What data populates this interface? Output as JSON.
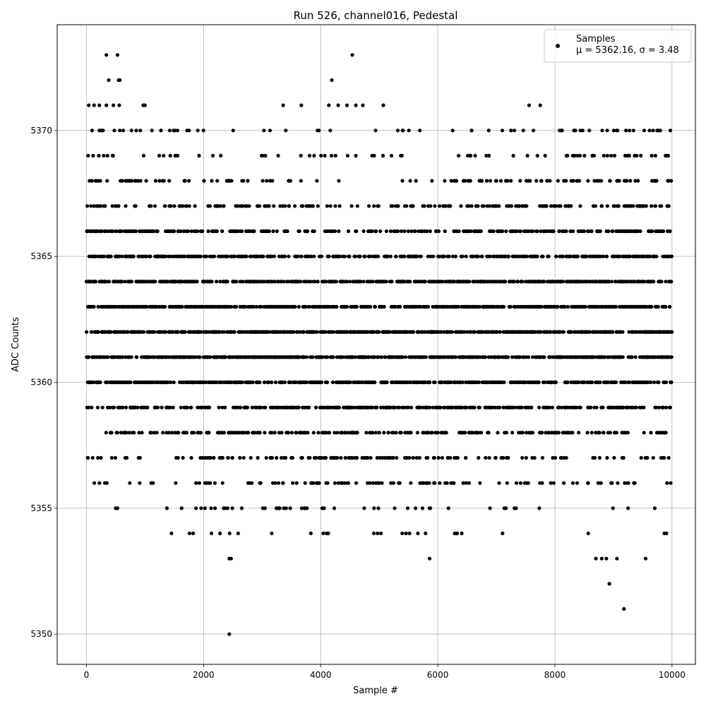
{
  "chart_data": {
    "type": "scatter",
    "title": "Run 526, channel016, Pedestal",
    "xlabel": "Sample #",
    "ylabel": "ADC Counts",
    "xlim": [
      -500,
      10400
    ],
    "ylim": [
      5348.8,
      5374.2
    ],
    "grid": true,
    "x_ticks": [
      0,
      2000,
      4000,
      6000,
      8000,
      10000
    ],
    "y_ticks": [
      5350,
      5355,
      5360,
      5365,
      5370
    ],
    "legend": {
      "placement": "top-right",
      "series_label": "Samples",
      "stats_mu_label": "μ = 5362.16, ",
      "stats_sigma_label": "σ = 3.48"
    },
    "series": [
      {
        "color": "#000000",
        "marker": "dot",
        "mean": 5362.16,
        "std": 3.48,
        "n_samples": 10000,
        "outliers": [
          {
            "x": 340,
            "y": 5373
          },
          {
            "x": 530,
            "y": 5373
          },
          {
            "x": 4540,
            "y": 5373
          },
          {
            "x": 380,
            "y": 5372
          },
          {
            "x": 550,
            "y": 5372
          },
          {
            "x": 570,
            "y": 5372
          },
          {
            "x": 4190,
            "y": 5372
          },
          {
            "x": 40,
            "y": 5371
          },
          {
            "x": 130,
            "y": 5371
          },
          {
            "x": 220,
            "y": 5371
          },
          {
            "x": 340,
            "y": 5371
          },
          {
            "x": 460,
            "y": 5371
          },
          {
            "x": 560,
            "y": 5371
          },
          {
            "x": 970,
            "y": 5371
          },
          {
            "x": 1000,
            "y": 5371
          },
          {
            "x": 3360,
            "y": 5371
          },
          {
            "x": 3670,
            "y": 5371
          },
          {
            "x": 4140,
            "y": 5371
          },
          {
            "x": 4300,
            "y": 5371
          },
          {
            "x": 4450,
            "y": 5371
          },
          {
            "x": 4600,
            "y": 5371
          },
          {
            "x": 4720,
            "y": 5371
          },
          {
            "x": 5070,
            "y": 5371
          },
          {
            "x": 7560,
            "y": 5371
          },
          {
            "x": 7750,
            "y": 5371
          },
          {
            "x": 2440,
            "y": 5353
          },
          {
            "x": 2470,
            "y": 5353
          },
          {
            "x": 5860,
            "y": 5353
          },
          {
            "x": 8700,
            "y": 5353
          },
          {
            "x": 8800,
            "y": 5353
          },
          {
            "x": 8880,
            "y": 5353
          },
          {
            "x": 9060,
            "y": 5353
          },
          {
            "x": 9550,
            "y": 5353
          },
          {
            "x": 8930,
            "y": 5352
          },
          {
            "x": 9180,
            "y": 5351
          },
          {
            "x": 2440,
            "y": 5350
          }
        ]
      }
    ]
  }
}
